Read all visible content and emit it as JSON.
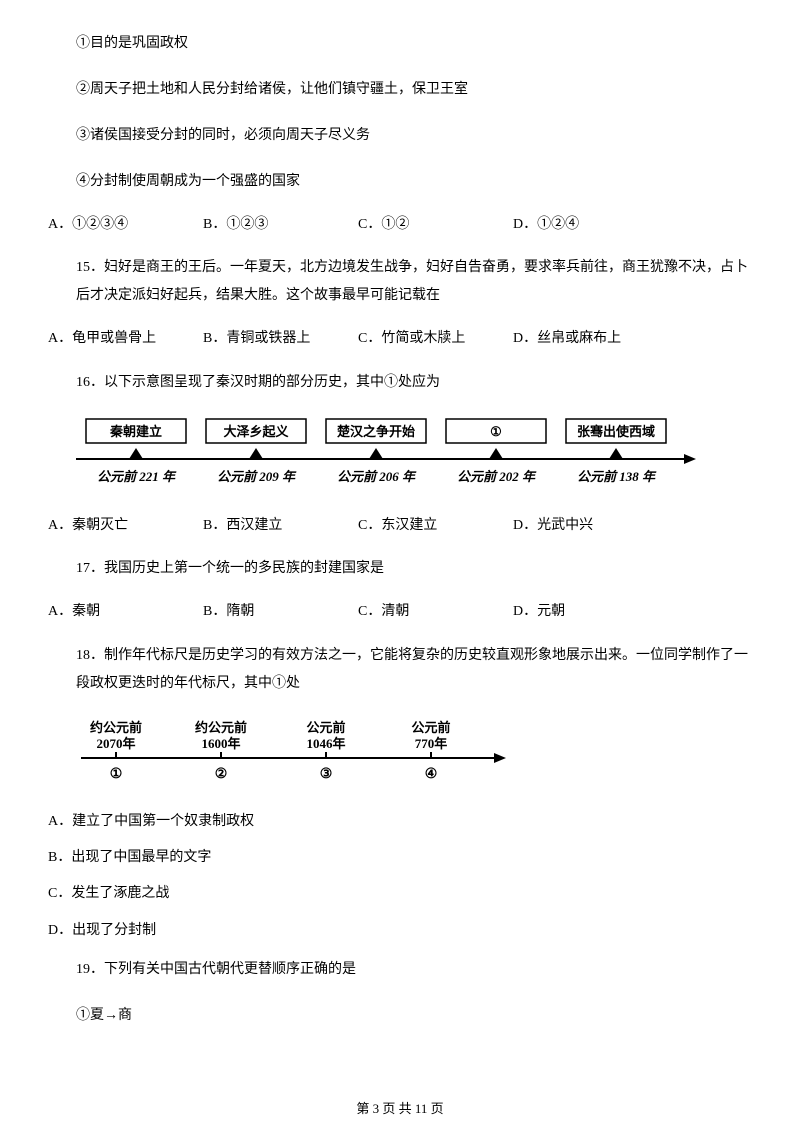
{
  "statements": {
    "s1": "①目的是巩固政权",
    "s2": "②周天子把土地和人民分封给诸侯，让他们镇守疆土，保卫王室",
    "s3": "③诸侯国接受分封的同时，必须向周天子尽义务",
    "s4": "④分封制使周朝成为一个强盛的国家"
  },
  "q14_options": {
    "a": "A．①②③④",
    "b": "B．①②③",
    "c": "C．①②",
    "d": "D．①②④"
  },
  "q15": {
    "text": "15．妇好是商王的王后。一年夏天，北方边境发生战争，妇好自告奋勇，要求率兵前往，商王犹豫不决，占卜后才决定派妇好起兵，结果大胜。这个故事最早可能记载在",
    "a": "A．龟甲或兽骨上",
    "b": "B．青铜或铁器上",
    "c": "C．竹简或木牍上",
    "d": "D．丝帛或麻布上"
  },
  "q16": {
    "text": "16．以下示意图呈现了秦汉时期的部分历史，其中①处应为",
    "a": "A．秦朝灭亡",
    "b": "B．西汉建立",
    "c": "C．东汉建立",
    "d": "D．光武中兴"
  },
  "timeline1": {
    "boxes": [
      "秦朝建立",
      "大泽乡起义",
      "楚汉之争开始",
      "①",
      "张骞出使西域"
    ],
    "years": [
      "公元前 221 年",
      "公元前 209 年",
      "公元前 206 年",
      "公元前 202 年",
      "公元前 138 年"
    ],
    "box_stroke": "#000000",
    "text_color": "#000000",
    "font_size": 13,
    "font_size_year": 13
  },
  "q17": {
    "text": "17．我国历史上第一个统一的多民族的封建国家是",
    "a": "A．秦朝",
    "b": "B．隋朝",
    "c": "C．清朝",
    "d": "D．元朝"
  },
  "q18": {
    "text": "18．制作年代标尺是历史学习的有效方法之一，它能将复杂的历史较直观形象地展示出来。一位同学制作了一段政权更迭时的年代标尺，其中①处",
    "optA": "A．建立了中国第一个奴隶制政权",
    "optB": "B．出现了中国最早的文字",
    "optC": "C．发生了涿鹿之战",
    "optD": "D．出现了分封制"
  },
  "timeline2": {
    "top_line1": [
      "约公元前",
      "约公元前",
      "公元前",
      "公元前"
    ],
    "top_line2": [
      "2070年",
      "1600年",
      "1046年",
      "770年"
    ],
    "bottom": [
      "①",
      "②",
      "③",
      "④"
    ],
    "font_size": 13
  },
  "q19": {
    "text": "19．下列有关中国古代朝代更替顺序正确的是",
    "s1": "①夏→商"
  },
  "footer": "第 3 页 共 11 页"
}
